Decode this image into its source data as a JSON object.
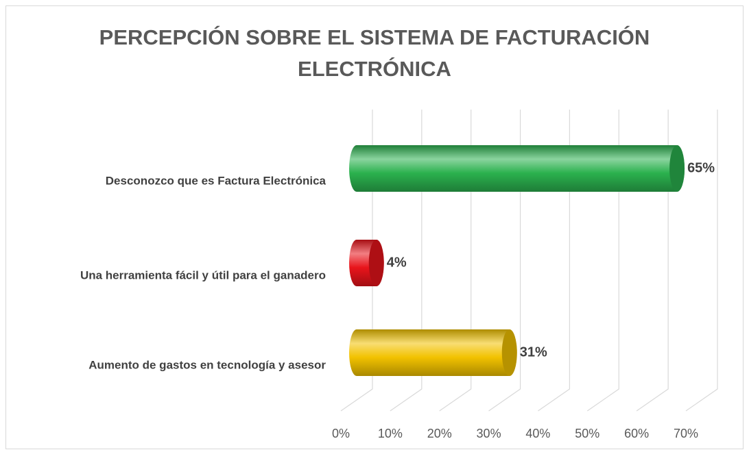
{
  "chart_data": {
    "type": "bar3d-horizontal",
    "title": "PERCEPCIÓN SOBRE EL SISTEMA DE FACTURACIÓN ELECTRÓNICA",
    "categories": [
      "Desconozco que es Factura Electrónica",
      "Una herramienta fácil y útil para el ganadero",
      "Aumento de gastos en tecnología y asesor"
    ],
    "values": [
      65,
      4,
      31
    ],
    "value_labels": [
      "65%",
      "4%",
      "31%"
    ],
    "colors": [
      "#2bb14e",
      "#e8141b",
      "#f2c200"
    ],
    "xlim": [
      0,
      70
    ],
    "xticks": [
      {
        "value": 0,
        "label": "0%"
      },
      {
        "value": 10,
        "label": "10%"
      },
      {
        "value": 20,
        "label": "20%"
      },
      {
        "value": 30,
        "label": "30%"
      },
      {
        "value": 40,
        "label": "40%"
      },
      {
        "value": 50,
        "label": "50%"
      },
      {
        "value": 60,
        "label": "60%"
      },
      {
        "value": 70,
        "label": "70%"
      }
    ],
    "grid": true
  }
}
